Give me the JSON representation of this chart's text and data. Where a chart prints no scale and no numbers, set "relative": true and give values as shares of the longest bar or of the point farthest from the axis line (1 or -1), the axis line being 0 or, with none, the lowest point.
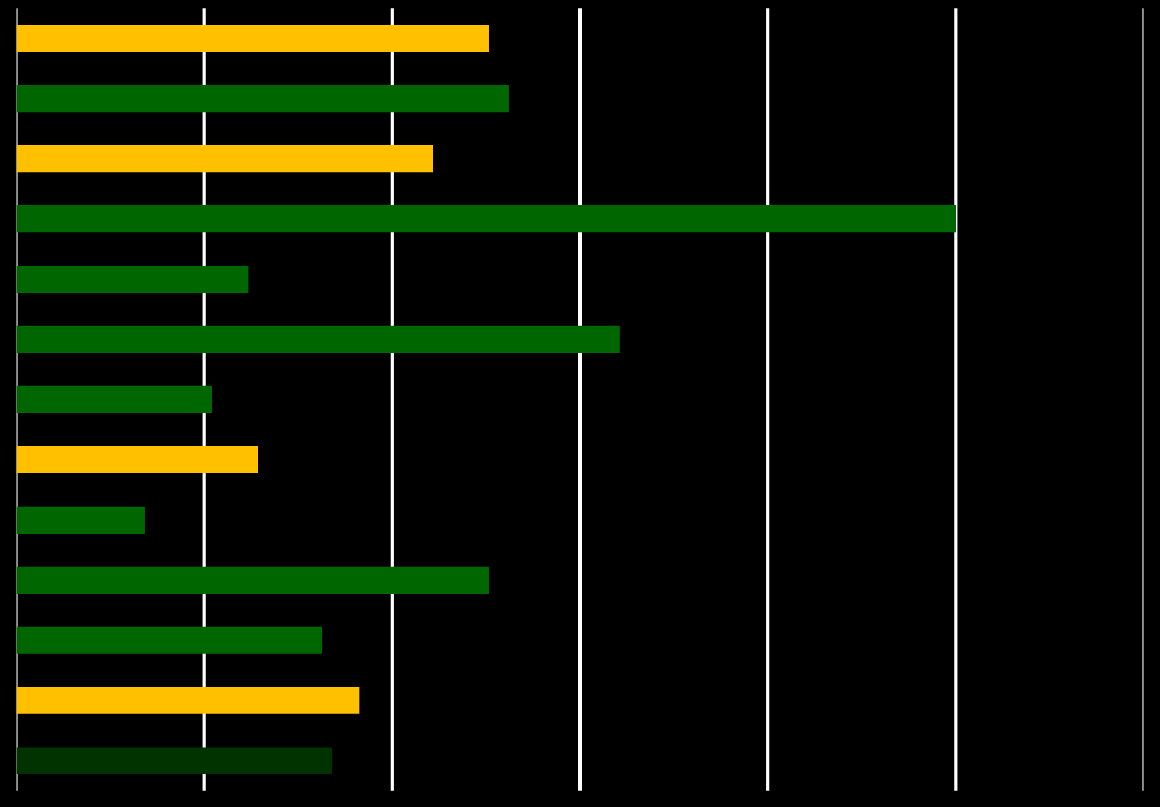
{
  "chart_data": {
    "type": "bar",
    "orientation": "horizontal",
    "relative": true,
    "grid": "x",
    "categories": [
      null,
      null,
      null,
      null,
      null,
      null,
      null,
      null,
      null,
      null,
      null,
      null,
      null
    ],
    "values": [
      0.503,
      0.524,
      0.444,
      1,
      0.247,
      0.642,
      0.208,
      0.257,
      0.137,
      0.503,
      0.326,
      0.365,
      0.336
    ],
    "colors": [
      "#ffc000",
      "#006600",
      "#ffc000",
      "#006600",
      "#006600",
      "#006600",
      "#006600",
      "#ffc000",
      "#006600",
      "#006600",
      "#006600",
      "#ffc000",
      "#003300"
    ]
  }
}
